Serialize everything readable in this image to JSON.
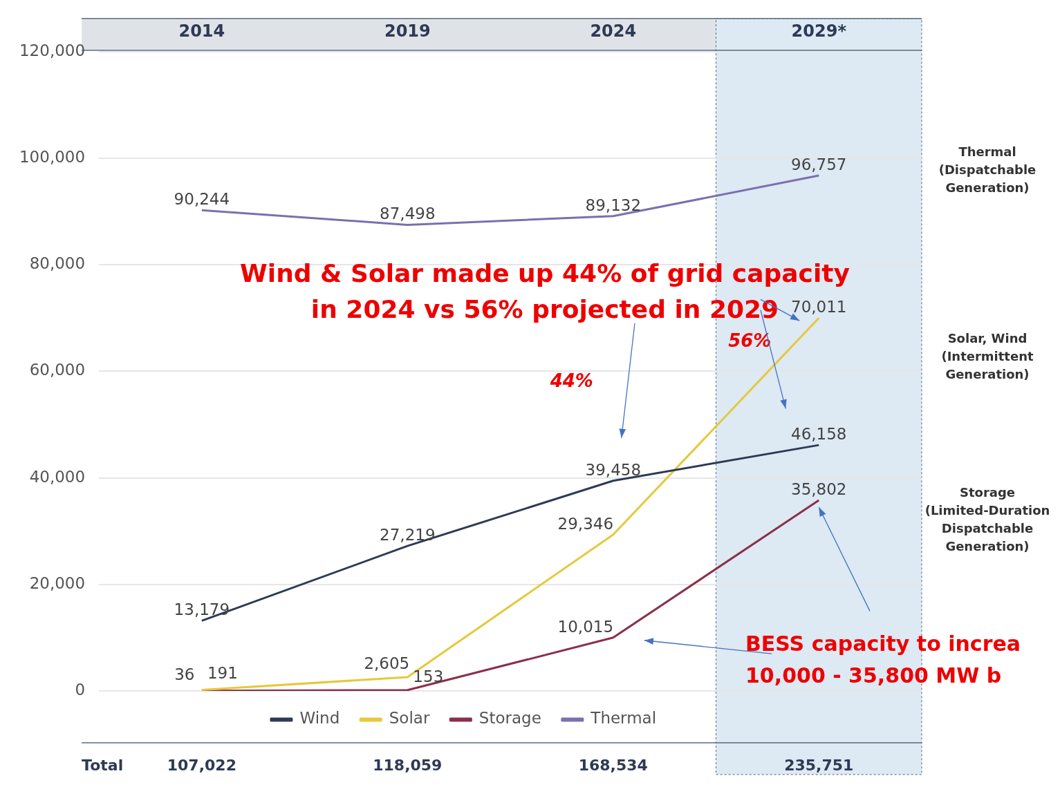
{
  "chart_data": {
    "type": "line",
    "categories": [
      "2014",
      "2019",
      "2024",
      "2029*"
    ],
    "series": [
      {
        "name": "Wind",
        "color": "#2e3a55",
        "values": [
          13179,
          27219,
          39458,
          46158
        ],
        "value_labels": [
          "13,179",
          "27,219",
          "39,458",
          "46,158"
        ]
      },
      {
        "name": "Solar",
        "color": "#e6c83c",
        "values": [
          191,
          2605,
          29346,
          70011
        ],
        "value_labels": [
          "191",
          "2,605",
          "29,346",
          "70,011"
        ]
      },
      {
        "name": "Storage",
        "color": "#8b2f4a",
        "values": [
          36,
          153,
          10015,
          35802
        ],
        "value_labels": [
          "36",
          "153",
          "10,015",
          "35,802"
        ]
      },
      {
        "name": "Thermal",
        "color": "#7b6fb0",
        "values": [
          90244,
          87498,
          89132,
          96757
        ],
        "value_labels": [
          "90,244",
          "87,498",
          "89,132",
          "96,757"
        ]
      }
    ],
    "ylim": [
      0,
      120000
    ],
    "yticks": [
      {
        "value": 0,
        "label": "0"
      },
      {
        "value": 20000,
        "label": "20,000"
      },
      {
        "value": 40000,
        "label": "40,000"
      },
      {
        "value": 60000,
        "label": "60,000"
      },
      {
        "value": 80000,
        "label": "80,000"
      },
      {
        "value": 100000,
        "label": "100,000"
      },
      {
        "value": 120000,
        "label": "120,000"
      }
    ],
    "grid": "y",
    "legend": "bottom",
    "marker": "none",
    "line_style": "solid",
    "bands": [
      {
        "axis": "x",
        "from": "2029*",
        "to": "2029*",
        "color": "#dde9f3"
      }
    ],
    "totals": [
      "107,022",
      "118,059",
      "168,534",
      "235,751"
    ],
    "annotations": [
      "Total",
      "Wind & Solar made up 44% of grid capacity\nin 2024 vs 56% projected in 2029",
      "44%",
      "56%",
      "BESS capacity to increa\n10,000 - 35,800 MW b",
      "Thermal\n(Dispatchable\nGeneration)",
      "Solar, Wind\n(Intermittent\nGeneration)",
      "Storage\n(Limited-Duration\nDispatchable\nGeneration)"
    ]
  }
}
